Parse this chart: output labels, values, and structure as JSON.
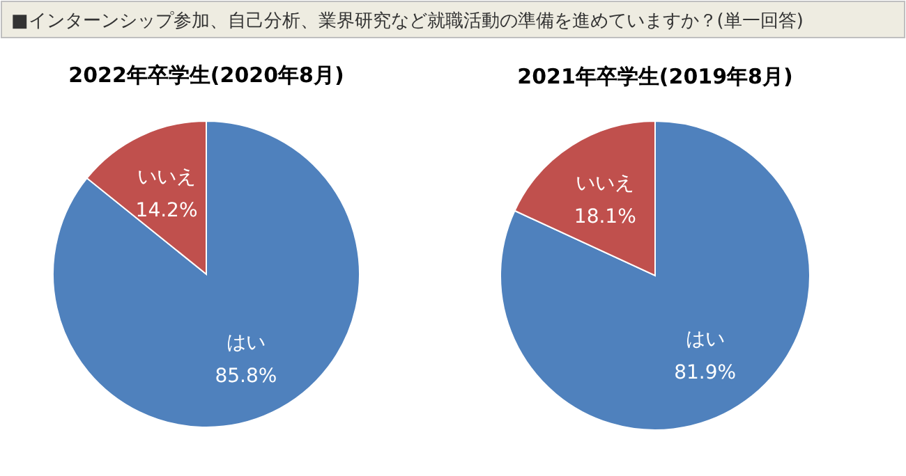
{
  "chart_data": [
    {
      "type": "pie",
      "title": "■インターンシップ参加、自己分析、業界研究など就職活動の準備を進めていますか？(単一回答)",
      "subtitle": "2022年卒学生(2020年8月)",
      "categories": [
        "はい",
        "いいえ"
      ],
      "values": [
        85.8,
        14.2
      ],
      "colors": [
        "#4f81bd",
        "#c0504d"
      ],
      "value_labels": [
        "85.8%",
        "14.2%"
      ]
    },
    {
      "type": "pie",
      "title": "2021年卒学生(2019年8月)",
      "categories": [
        "はい",
        "いいえ"
      ],
      "values": [
        81.9,
        18.1
      ],
      "colors": [
        "#4f81bd",
        "#c0504d"
      ],
      "value_labels": [
        "81.9%",
        "18.1%"
      ]
    }
  ]
}
